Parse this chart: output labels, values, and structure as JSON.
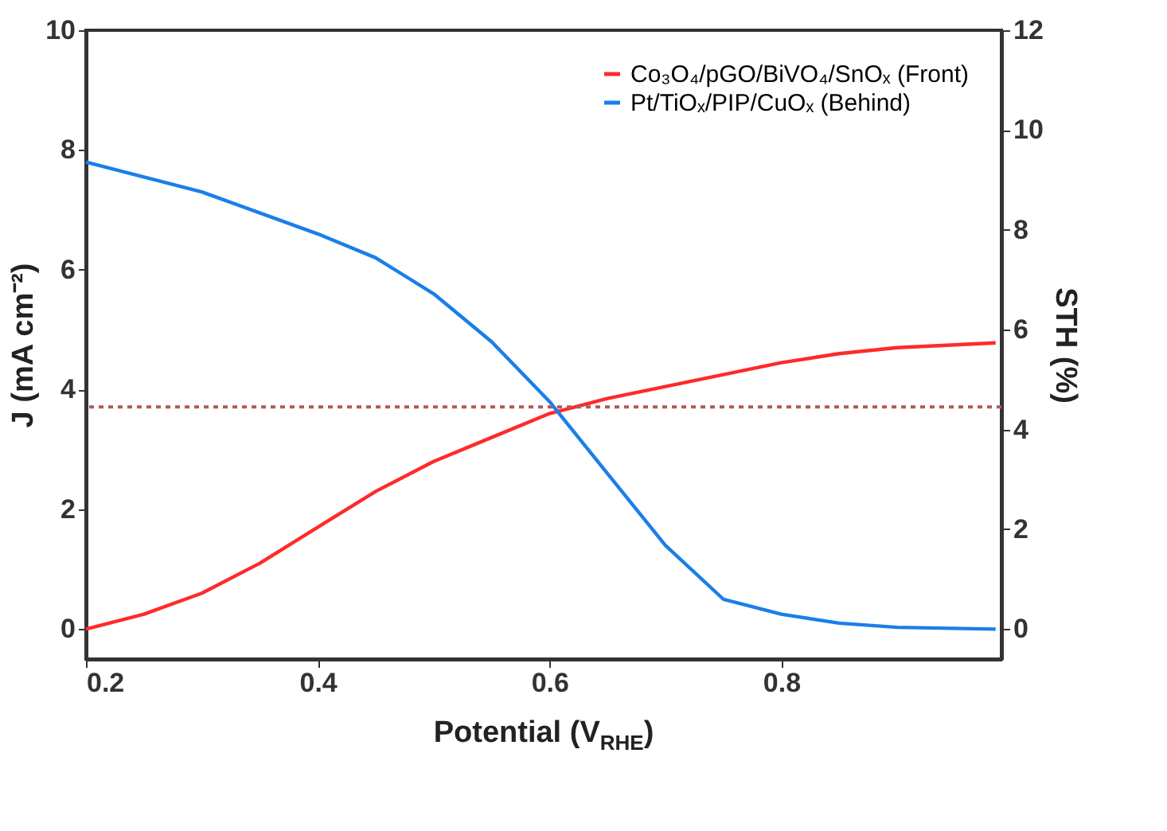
{
  "chart_data": {
    "type": "line",
    "xlabel": "Potential (V$_{RHE}$)",
    "ylabel": "J (mA cm⁻²)",
    "y2label": "STH (%)",
    "xlim": [
      0.2,
      0.99
    ],
    "xticks": [
      0.2,
      0.4,
      0.6,
      0.8
    ],
    "ylim": [
      -0.5,
      10
    ],
    "yticks": [
      0,
      2,
      4,
      6,
      8,
      10
    ],
    "y2lim": [
      -0.6,
      12
    ],
    "y2ticks": [
      0,
      2,
      4,
      6,
      8,
      10,
      12
    ],
    "grid": false,
    "legend": "top right",
    "marker": "none",
    "line_style": "solid",
    "series": [
      {
        "name": "Co₃O₄/pGO/BiVO₄/SnOₓ (Front)",
        "color": "#ff2a2a",
        "x": [
          0.2,
          0.25,
          0.3,
          0.35,
          0.4,
          0.45,
          0.5,
          0.55,
          0.6,
          0.65,
          0.7,
          0.75,
          0.8,
          0.85,
          0.9,
          0.985
        ],
        "values": [
          0,
          0.25,
          0.6,
          1.1,
          1.7,
          2.3,
          2.8,
          3.2,
          3.6,
          3.85,
          4.05,
          4.25,
          4.45,
          4.6,
          4.7,
          4.78
        ]
      },
      {
        "name": "Pt/TiOₓ/PIP/CuOₓ (Behind)",
        "color": "#1a7fe8",
        "x": [
          0.2,
          0.3,
          0.4,
          0.45,
          0.5,
          0.55,
          0.6,
          0.65,
          0.7,
          0.75,
          0.8,
          0.85,
          0.9,
          0.985
        ],
        "values": [
          7.8,
          7.3,
          6.6,
          6.2,
          5.6,
          4.8,
          3.8,
          2.6,
          1.4,
          0.5,
          0.25,
          0.1,
          0.03,
          0
        ]
      }
    ],
    "ref_lines": [
      {
        "axis": "y2",
        "value": 4.45,
        "label": null,
        "color": "#b05a5a",
        "line_style": "dotted"
      }
    ]
  }
}
